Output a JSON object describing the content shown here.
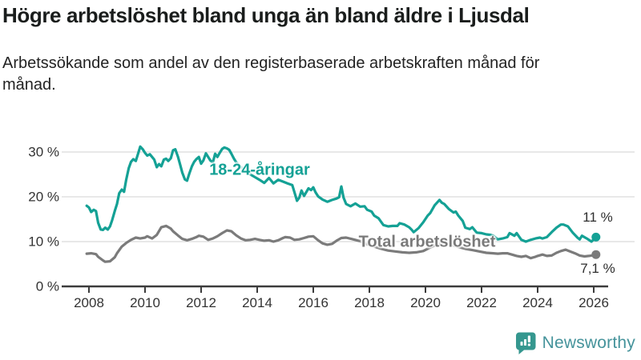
{
  "header": {
    "title": "Högre arbetslöshet bland unga än bland äldre i Ljusdal",
    "subtitle": "Arbetssökande som andel av den registerbaserade arbetskraften månad för månad."
  },
  "chart_data": {
    "type": "line",
    "x_axis": {
      "tick_labels": [
        "2008",
        "2010",
        "2012",
        "2014",
        "2016",
        "2018",
        "2020",
        "2022",
        "2024",
        "2026"
      ],
      "tick_years": [
        2008,
        2010,
        2012,
        2014,
        2016,
        2018,
        2020,
        2022,
        2024,
        2026
      ],
      "range_years": [
        2007.9,
        2026.4
      ]
    },
    "y_axis": {
      "tick_labels": [
        "0 %",
        "10 %",
        "20 %",
        "30 %"
      ],
      "tick_values": [
        0,
        10,
        20,
        30
      ],
      "unit": "%",
      "range": [
        0,
        33
      ]
    },
    "grid": "horizontal-light",
    "series": [
      {
        "name": "18-24-åringar",
        "color": "#14a195",
        "end_label": "11 %",
        "end_value": 11,
        "points_year_value": [
          [
            2007.92,
            18.0
          ],
          [
            2008.0,
            17.6
          ],
          [
            2008.08,
            16.6
          ],
          [
            2008.17,
            17.1
          ],
          [
            2008.25,
            16.8
          ],
          [
            2008.33,
            14.2
          ],
          [
            2008.42,
            12.7
          ],
          [
            2008.5,
            12.6
          ],
          [
            2008.58,
            13.1
          ],
          [
            2008.67,
            12.7
          ],
          [
            2008.75,
            13.4
          ],
          [
            2008.83,
            14.8
          ],
          [
            2008.92,
            16.8
          ],
          [
            2009.0,
            18.4
          ],
          [
            2009.08,
            20.8
          ],
          [
            2009.17,
            21.6
          ],
          [
            2009.25,
            21.1
          ],
          [
            2009.33,
            23.8
          ],
          [
            2009.42,
            26.4
          ],
          [
            2009.5,
            27.8
          ],
          [
            2009.58,
            28.4
          ],
          [
            2009.67,
            28.0
          ],
          [
            2009.75,
            29.6
          ],
          [
            2009.83,
            31.2
          ],
          [
            2009.92,
            30.6
          ],
          [
            2010.0,
            29.8
          ],
          [
            2010.08,
            29.2
          ],
          [
            2010.17,
            29.5
          ],
          [
            2010.25,
            28.9
          ],
          [
            2010.33,
            28.3
          ],
          [
            2010.42,
            26.6
          ],
          [
            2010.5,
            27.3
          ],
          [
            2010.58,
            26.8
          ],
          [
            2010.67,
            28.3
          ],
          [
            2010.75,
            28.5
          ],
          [
            2010.83,
            28.0
          ],
          [
            2010.92,
            28.6
          ],
          [
            2011.0,
            30.4
          ],
          [
            2011.08,
            30.6
          ],
          [
            2011.17,
            29.0
          ],
          [
            2011.25,
            27.2
          ],
          [
            2011.33,
            25.4
          ],
          [
            2011.42,
            23.9
          ],
          [
            2011.5,
            23.6
          ],
          [
            2011.58,
            25.2
          ],
          [
            2011.67,
            26.8
          ],
          [
            2011.75,
            27.8
          ],
          [
            2011.83,
            28.4
          ],
          [
            2011.92,
            28.9
          ],
          [
            2012.0,
            27.4
          ],
          [
            2012.08,
            28.1
          ],
          [
            2012.17,
            29.7
          ],
          [
            2012.25,
            28.9
          ],
          [
            2012.33,
            28.1
          ],
          [
            2012.42,
            27.7
          ],
          [
            2012.5,
            29.6
          ],
          [
            2012.58,
            28.9
          ],
          [
            2012.67,
            29.9
          ],
          [
            2012.75,
            30.7
          ],
          [
            2012.83,
            31.0
          ],
          [
            2012.92,
            30.8
          ],
          [
            2013.0,
            30.5
          ],
          [
            2013.08,
            29.6
          ],
          [
            2013.17,
            28.5
          ],
          [
            2013.25,
            27.7
          ],
          [
            2013.42,
            26.6
          ],
          [
            2013.58,
            25.6
          ],
          [
            2013.75,
            25.0
          ],
          [
            2013.92,
            24.4
          ],
          [
            2014.08,
            23.8
          ],
          [
            2014.25,
            23.1
          ],
          [
            2014.42,
            24.2
          ],
          [
            2014.58,
            23.0
          ],
          [
            2014.75,
            23.8
          ],
          [
            2014.92,
            23.4
          ],
          [
            2015.08,
            23.0
          ],
          [
            2015.25,
            22.6
          ],
          [
            2015.42,
            19.1
          ],
          [
            2015.5,
            19.8
          ],
          [
            2015.58,
            21.4
          ],
          [
            2015.67,
            20.2
          ],
          [
            2015.83,
            21.9
          ],
          [
            2015.92,
            21.5
          ],
          [
            2016.0,
            22.1
          ],
          [
            2016.08,
            21.0
          ],
          [
            2016.17,
            20.1
          ],
          [
            2016.33,
            19.4
          ],
          [
            2016.5,
            18.9
          ],
          [
            2016.67,
            19.3
          ],
          [
            2016.83,
            19.6
          ],
          [
            2016.92,
            19.9
          ],
          [
            2017.0,
            22.3
          ],
          [
            2017.08,
            19.8
          ],
          [
            2017.17,
            18.4
          ],
          [
            2017.33,
            17.9
          ],
          [
            2017.5,
            18.5
          ],
          [
            2017.67,
            17.8
          ],
          [
            2017.83,
            17.9
          ],
          [
            2017.92,
            17.1
          ],
          [
            2018.08,
            16.7
          ],
          [
            2018.17,
            15.8
          ],
          [
            2018.33,
            15.2
          ],
          [
            2018.5,
            13.7
          ],
          [
            2018.67,
            13.4
          ],
          [
            2018.83,
            13.5
          ],
          [
            2019.0,
            13.5
          ],
          [
            2019.08,
            14.1
          ],
          [
            2019.25,
            13.8
          ],
          [
            2019.42,
            13.2
          ],
          [
            2019.5,
            12.7
          ],
          [
            2019.58,
            12.1
          ],
          [
            2019.75,
            13.0
          ],
          [
            2019.92,
            14.3
          ],
          [
            2020.08,
            15.8
          ],
          [
            2020.17,
            16.4
          ],
          [
            2020.33,
            18.1
          ],
          [
            2020.5,
            19.3
          ],
          [
            2020.58,
            18.7
          ],
          [
            2020.67,
            18.4
          ],
          [
            2020.83,
            17.3
          ],
          [
            2021.0,
            16.5
          ],
          [
            2021.08,
            16.7
          ],
          [
            2021.17,
            15.8
          ],
          [
            2021.33,
            14.6
          ],
          [
            2021.42,
            13.1
          ],
          [
            2021.58,
            12.8
          ],
          [
            2021.67,
            13.2
          ],
          [
            2021.83,
            12.0
          ],
          [
            2022.0,
            11.9
          ],
          [
            2022.17,
            11.6
          ],
          [
            2022.33,
            11.5
          ],
          [
            2022.42,
            11.3
          ],
          [
            2022.58,
            10.5
          ],
          [
            2022.75,
            10.7
          ],
          [
            2022.92,
            11.0
          ],
          [
            2023.0,
            11.9
          ],
          [
            2023.17,
            11.3
          ],
          [
            2023.25,
            11.9
          ],
          [
            2023.42,
            10.4
          ],
          [
            2023.58,
            10.0
          ],
          [
            2023.75,
            10.4
          ],
          [
            2023.92,
            10.7
          ],
          [
            2024.08,
            10.9
          ],
          [
            2024.17,
            10.7
          ],
          [
            2024.33,
            11.0
          ],
          [
            2024.5,
            12.1
          ],
          [
            2024.67,
            13.1
          ],
          [
            2024.83,
            13.8
          ],
          [
            2024.92,
            13.8
          ],
          [
            2025.08,
            13.4
          ],
          [
            2025.25,
            12.0
          ],
          [
            2025.42,
            10.9
          ],
          [
            2025.5,
            10.5
          ],
          [
            2025.58,
            11.3
          ],
          [
            2025.75,
            10.7
          ],
          [
            2025.92,
            10.0
          ],
          [
            2026.08,
            11.0
          ]
        ]
      },
      {
        "name": "Total arbetslöshet",
        "color": "#7b7b7b",
        "end_label": "7,1 %",
        "end_value": 7.1,
        "points_year_value": [
          [
            2007.92,
            7.3
          ],
          [
            2008.08,
            7.4
          ],
          [
            2008.25,
            7.2
          ],
          [
            2008.33,
            6.6
          ],
          [
            2008.5,
            5.8
          ],
          [
            2008.58,
            5.5
          ],
          [
            2008.75,
            5.6
          ],
          [
            2008.92,
            6.5
          ],
          [
            2009.0,
            7.4
          ],
          [
            2009.17,
            8.9
          ],
          [
            2009.33,
            9.7
          ],
          [
            2009.5,
            10.4
          ],
          [
            2009.67,
            10.9
          ],
          [
            2009.83,
            10.7
          ],
          [
            2010.0,
            10.9
          ],
          [
            2010.08,
            11.2
          ],
          [
            2010.25,
            10.7
          ],
          [
            2010.42,
            11.5
          ],
          [
            2010.58,
            13.2
          ],
          [
            2010.75,
            13.5
          ],
          [
            2010.92,
            12.9
          ],
          [
            2011.0,
            12.3
          ],
          [
            2011.17,
            11.4
          ],
          [
            2011.33,
            10.6
          ],
          [
            2011.5,
            10.3
          ],
          [
            2011.67,
            10.6
          ],
          [
            2011.83,
            11.0
          ],
          [
            2011.92,
            11.3
          ],
          [
            2012.08,
            11.1
          ],
          [
            2012.25,
            10.4
          ],
          [
            2012.42,
            10.7
          ],
          [
            2012.58,
            11.2
          ],
          [
            2012.75,
            11.9
          ],
          [
            2012.92,
            12.5
          ],
          [
            2013.08,
            12.3
          ],
          [
            2013.25,
            11.4
          ],
          [
            2013.42,
            10.7
          ],
          [
            2013.58,
            10.3
          ],
          [
            2013.75,
            10.4
          ],
          [
            2013.92,
            10.6
          ],
          [
            2014.08,
            10.4
          ],
          [
            2014.25,
            10.2
          ],
          [
            2014.42,
            10.3
          ],
          [
            2014.58,
            10.0
          ],
          [
            2014.75,
            10.3
          ],
          [
            2014.92,
            10.8
          ],
          [
            2015.0,
            11.0
          ],
          [
            2015.17,
            10.9
          ],
          [
            2015.33,
            10.4
          ],
          [
            2015.5,
            10.5
          ],
          [
            2015.67,
            10.8
          ],
          [
            2015.83,
            11.1
          ],
          [
            2016.0,
            11.2
          ],
          [
            2016.17,
            10.3
          ],
          [
            2016.33,
            9.6
          ],
          [
            2016.5,
            9.3
          ],
          [
            2016.67,
            9.5
          ],
          [
            2016.83,
            10.2
          ],
          [
            2017.0,
            10.8
          ],
          [
            2017.17,
            10.9
          ],
          [
            2017.42,
            10.5
          ],
          [
            2017.67,
            10.1
          ],
          [
            2017.92,
            9.4
          ],
          [
            2018.17,
            8.9
          ],
          [
            2018.42,
            8.4
          ],
          [
            2018.67,
            8.0
          ],
          [
            2018.92,
            7.8
          ],
          [
            2019.17,
            7.6
          ],
          [
            2019.42,
            7.5
          ],
          [
            2019.67,
            7.6
          ],
          [
            2019.92,
            7.9
          ],
          [
            2020.17,
            8.7
          ],
          [
            2020.42,
            9.4
          ],
          [
            2020.67,
            9.6
          ],
          [
            2020.92,
            9.3
          ],
          [
            2021.17,
            8.8
          ],
          [
            2021.42,
            8.4
          ],
          [
            2021.67,
            8.1
          ],
          [
            2021.92,
            7.8
          ],
          [
            2022.17,
            7.5
          ],
          [
            2022.42,
            7.4
          ],
          [
            2022.58,
            7.3
          ],
          [
            2022.75,
            7.4
          ],
          [
            2022.92,
            7.4
          ],
          [
            2023.08,
            7.1
          ],
          [
            2023.25,
            6.8
          ],
          [
            2023.42,
            6.6
          ],
          [
            2023.58,
            6.8
          ],
          [
            2023.75,
            6.3
          ],
          [
            2023.92,
            6.6
          ],
          [
            2024.0,
            6.8
          ],
          [
            2024.17,
            7.1
          ],
          [
            2024.33,
            6.8
          ],
          [
            2024.5,
            6.9
          ],
          [
            2024.67,
            7.5
          ],
          [
            2024.83,
            7.9
          ],
          [
            2025.0,
            8.2
          ],
          [
            2025.08,
            8.0
          ],
          [
            2025.33,
            7.4
          ],
          [
            2025.5,
            6.9
          ],
          [
            2025.67,
            6.7
          ],
          [
            2025.83,
            6.8
          ],
          [
            2025.92,
            6.9
          ],
          [
            2026.08,
            7.1
          ]
        ]
      }
    ]
  },
  "footer": {
    "brand": "Newsworthy",
    "icon_color": "#35978f",
    "wordmark_color": "#45939b"
  }
}
